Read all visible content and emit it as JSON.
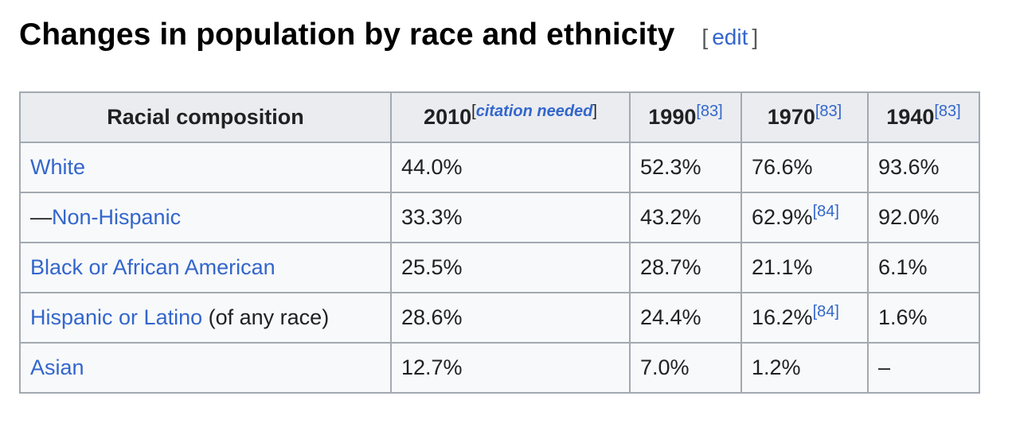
{
  "heading": {
    "title": "Changes in population by race and ethnicity",
    "edit_open": "[",
    "edit_label": "edit",
    "edit_close": "]"
  },
  "table": {
    "headers": [
      {
        "label": "Racial composition",
        "sup_open": "",
        "sup_text": "",
        "sup_close": ""
      },
      {
        "label": "2010",
        "sup_open": "[",
        "sup_text": "citation needed",
        "sup_close": "]"
      },
      {
        "label": "1990",
        "sup_open": "",
        "sup_text": "[83]",
        "sup_close": ""
      },
      {
        "label": "1970",
        "sup_open": "",
        "sup_text": "[83]",
        "sup_close": ""
      },
      {
        "label": "1940",
        "sup_open": "",
        "sup_text": "[83]",
        "sup_close": ""
      }
    ],
    "rows": [
      {
        "prefix": "",
        "label": "White",
        "suffix": "",
        "values": [
          "44.0%",
          "52.3%",
          "76.6%",
          "93.6%"
        ],
        "notes": [
          "",
          "",
          "",
          ""
        ]
      },
      {
        "prefix": "—",
        "label": "Non-Hispanic",
        "suffix": "",
        "values": [
          "33.3%",
          "43.2%",
          "62.9%",
          "92.0%"
        ],
        "notes": [
          "",
          "",
          "[84]",
          ""
        ]
      },
      {
        "prefix": "",
        "label": "Black or African American",
        "suffix": "",
        "values": [
          "25.5%",
          "28.7%",
          "21.1%",
          "6.1%"
        ],
        "notes": [
          "",
          "",
          "",
          ""
        ]
      },
      {
        "prefix": "",
        "label": "Hispanic or Latino",
        "suffix": " (of any race)",
        "values": [
          "28.6%",
          "24.4%",
          "16.2%",
          "1.6%"
        ],
        "notes": [
          "",
          "",
          "[84]",
          ""
        ]
      },
      {
        "prefix": "",
        "label": "Asian",
        "suffix": "",
        "values": [
          "12.7%",
          "7.0%",
          "1.2%",
          "–"
        ],
        "notes": [
          "",
          "",
          "",
          ""
        ]
      }
    ]
  }
}
